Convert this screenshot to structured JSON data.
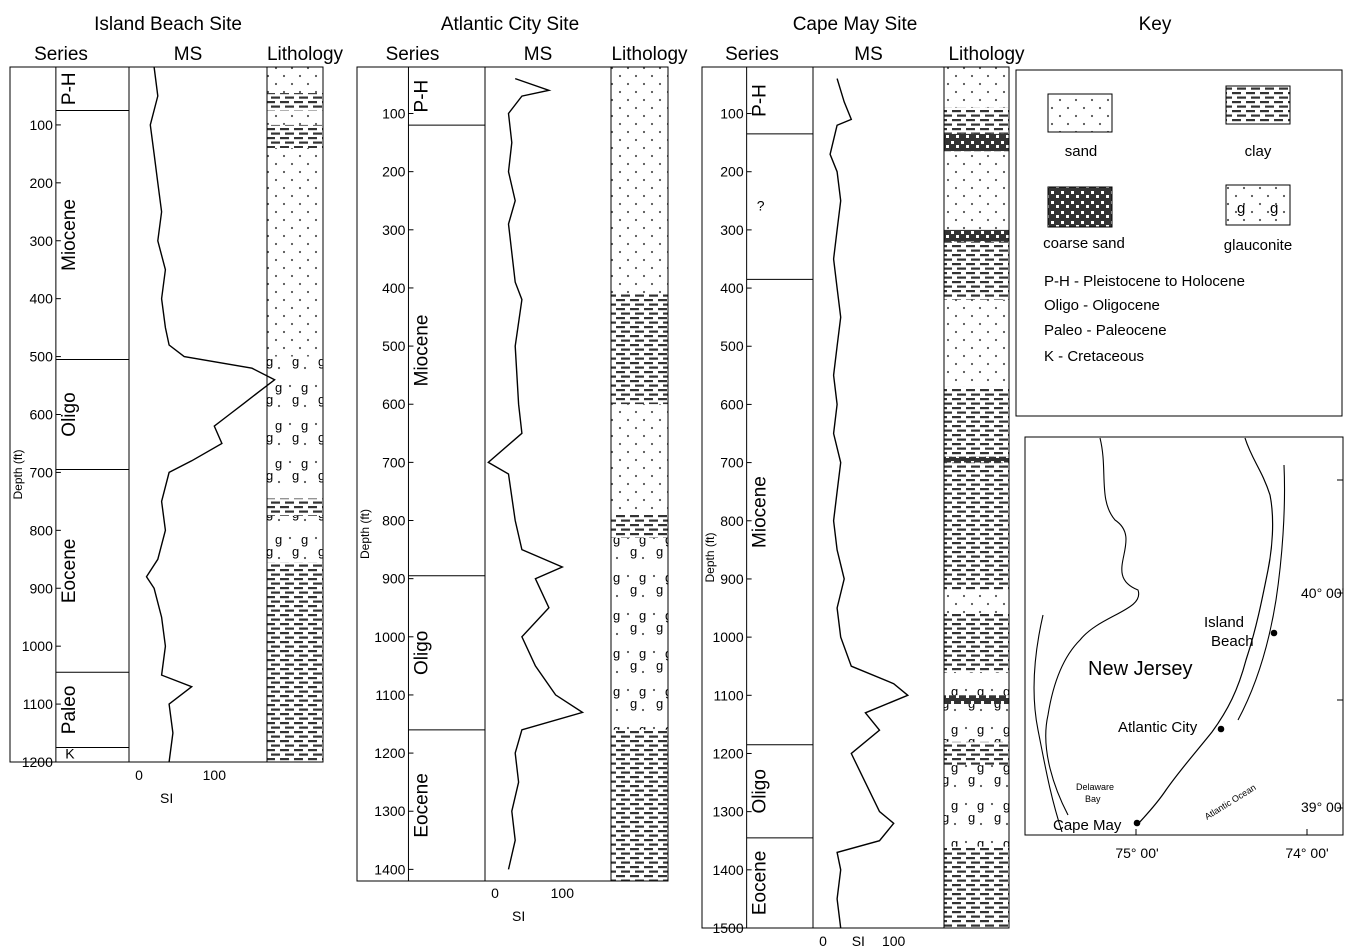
{
  "key": {
    "title": "Key",
    "sand": "sand",
    "clay": "clay",
    "coarse_sand": "coarse sand",
    "glauconite": "glauconite",
    "glauc_symbol": "g",
    "abbreviations": [
      "P-H - Pleistocene to Holocene",
      "Oligo - Oligocene",
      "Paleo - Paleocene",
      "K - Cretaceous"
    ]
  },
  "map": {
    "state": "New Jersey",
    "bay": [
      "Delaware",
      "Bay"
    ],
    "ocean": "Atlantic Ocean",
    "sites": [
      "Island",
      "Beach",
      "Atlantic City",
      "Cape May"
    ],
    "lat_labels": [
      "40° 00'",
      "39° 00'"
    ],
    "lon_labels": [
      "75° 00'",
      "74° 00'"
    ]
  },
  "columns_header": {
    "series": "Series",
    "ms": "MS",
    "lithology": "Lithology",
    "depth_label": "Depth (ft)",
    "si_label": "SI"
  },
  "chart_data": [
    {
      "type": "line",
      "title": "Island Beach Site",
      "ylabel": "Depth (ft)",
      "xlabel": "SI",
      "ylim": [
        1200,
        0
      ],
      "yticks": [
        100,
        200,
        300,
        400,
        500,
        600,
        700,
        800,
        900,
        1000,
        1100,
        1200
      ],
      "xticks": [
        0,
        100
      ],
      "series_units": [
        {
          "name": "P-H",
          "top": 0,
          "bottom": 75
        },
        {
          "name": "Miocene",
          "top": 75,
          "bottom": 505
        },
        {
          "name": "Oligo",
          "top": 505,
          "bottom": 695
        },
        {
          "name": "Eocene",
          "top": 695,
          "bottom": 1045
        },
        {
          "name": "Paleo",
          "top": 1045,
          "bottom": 1175
        },
        {
          "name": "K",
          "top": 1175,
          "bottom": 1200
        }
      ],
      "lithology": [
        {
          "type": "sand",
          "top": 0,
          "bottom": 45
        },
        {
          "type": "clay",
          "top": 45,
          "bottom": 75
        },
        {
          "type": "sand",
          "top": 75,
          "bottom": 100
        },
        {
          "type": "clay",
          "top": 100,
          "bottom": 140
        },
        {
          "type": "sand",
          "top": 140,
          "bottom": 500
        },
        {
          "type": "glauconite",
          "top": 500,
          "bottom": 745
        },
        {
          "type": "clay",
          "top": 745,
          "bottom": 775
        },
        {
          "type": "glauconite",
          "top": 775,
          "bottom": 855
        },
        {
          "type": "clay",
          "top": 855,
          "bottom": 1200
        }
      ],
      "ms_profile": [
        [
          0,
          20
        ],
        [
          50,
          25
        ],
        [
          100,
          15
        ],
        [
          150,
          20
        ],
        [
          200,
          25
        ],
        [
          250,
          30
        ],
        [
          300,
          25
        ],
        [
          350,
          35
        ],
        [
          400,
          30
        ],
        [
          450,
          35
        ],
        [
          480,
          40
        ],
        [
          500,
          60
        ],
        [
          520,
          150
        ],
        [
          540,
          180
        ],
        [
          560,
          160
        ],
        [
          580,
          140
        ],
        [
          600,
          120
        ],
        [
          620,
          100
        ],
        [
          650,
          110
        ],
        [
          680,
          70
        ],
        [
          700,
          40
        ],
        [
          750,
          30
        ],
        [
          800,
          35
        ],
        [
          850,
          25
        ],
        [
          880,
          10
        ],
        [
          900,
          20
        ],
        [
          950,
          30
        ],
        [
          1000,
          35
        ],
        [
          1050,
          30
        ],
        [
          1070,
          70
        ],
        [
          1100,
          40
        ],
        [
          1150,
          45
        ],
        [
          1200,
          40
        ]
      ]
    },
    {
      "type": "line",
      "title": "Atlantic City Site",
      "ylabel": "Depth (ft)",
      "xlabel": "SI",
      "ylim": [
        1420,
        20
      ],
      "yticks": [
        100,
        200,
        300,
        400,
        500,
        600,
        700,
        800,
        900,
        1000,
        1100,
        1200,
        1300,
        1400
      ],
      "xticks": [
        0,
        100
      ],
      "series_units": [
        {
          "name": "P-H",
          "top": 20,
          "bottom": 120
        },
        {
          "name": "Miocene",
          "top": 120,
          "bottom": 895
        },
        {
          "name": "Oligo",
          "top": 895,
          "bottom": 1160
        },
        {
          "name": "Eocene",
          "top": 1160,
          "bottom": 1420
        }
      ],
      "lithology": [
        {
          "type": "sand",
          "top": 20,
          "bottom": 410
        },
        {
          "type": "clay",
          "top": 410,
          "bottom": 600
        },
        {
          "type": "sand",
          "top": 600,
          "bottom": 790
        },
        {
          "type": "clay",
          "top": 790,
          "bottom": 830
        },
        {
          "type": "glauconite",
          "top": 830,
          "bottom": 1160
        },
        {
          "type": "clay",
          "top": 1160,
          "bottom": 1420
        }
      ],
      "ms_profile": [
        [
          40,
          30
        ],
        [
          60,
          80
        ],
        [
          70,
          40
        ],
        [
          100,
          20
        ],
        [
          150,
          25
        ],
        [
          200,
          20
        ],
        [
          250,
          30
        ],
        [
          290,
          20
        ],
        [
          390,
          30
        ],
        [
          420,
          40
        ],
        [
          500,
          30
        ],
        [
          600,
          35
        ],
        [
          650,
          40
        ],
        [
          700,
          -10
        ],
        [
          720,
          20
        ],
        [
          800,
          30
        ],
        [
          850,
          40
        ],
        [
          880,
          100
        ],
        [
          900,
          60
        ],
        [
          950,
          80
        ],
        [
          1000,
          40
        ],
        [
          1050,
          60
        ],
        [
          1100,
          90
        ],
        [
          1130,
          130
        ],
        [
          1160,
          40
        ],
        [
          1200,
          30
        ],
        [
          1250,
          35
        ],
        [
          1300,
          25
        ],
        [
          1350,
          30
        ],
        [
          1400,
          20
        ]
      ]
    },
    {
      "type": "line",
      "title": "Cape May Site",
      "ylabel": "Depth (ft)",
      "xlabel": "SI",
      "ylim": [
        1500,
        20
      ],
      "yticks": [
        100,
        200,
        300,
        400,
        500,
        600,
        700,
        800,
        900,
        1000,
        1100,
        1200,
        1300,
        1400,
        1500
      ],
      "xticks": [
        0,
        100
      ],
      "series_units": [
        {
          "name": "P-H",
          "top": 20,
          "bottom": 135
        },
        {
          "name": "?",
          "top": 135,
          "bottom": 385
        },
        {
          "name": "Miocene",
          "top": 385,
          "bottom": 1185
        },
        {
          "name": "Oligo",
          "top": 1185,
          "bottom": 1345
        },
        {
          "name": "Eocene",
          "top": 1345,
          "bottom": 1500
        }
      ],
      "lithology": [
        {
          "type": "sand",
          "top": 20,
          "bottom": 90
        },
        {
          "type": "clay",
          "top": 90,
          "bottom": 135
        },
        {
          "type": "coarse_sand",
          "top": 135,
          "bottom": 165
        },
        {
          "type": "sand",
          "top": 165,
          "bottom": 300
        },
        {
          "type": "coarse_sand",
          "top": 300,
          "bottom": 320
        },
        {
          "type": "clay",
          "top": 320,
          "bottom": 420
        },
        {
          "type": "sand",
          "top": 420,
          "bottom": 570
        },
        {
          "type": "clay",
          "top": 570,
          "bottom": 690
        },
        {
          "type": "coarse_sand",
          "top": 690,
          "bottom": 700
        },
        {
          "type": "clay",
          "top": 700,
          "bottom": 920
        },
        {
          "type": "sand",
          "top": 920,
          "bottom": 960
        },
        {
          "type": "clay",
          "top": 960,
          "bottom": 1060
        },
        {
          "type": "glauconite",
          "top": 1060,
          "bottom": 1100
        },
        {
          "type": "coarse_sand",
          "top": 1100,
          "bottom": 1115
        },
        {
          "type": "glauconite",
          "top": 1115,
          "bottom": 1180
        },
        {
          "type": "clay",
          "top": 1180,
          "bottom": 1220
        },
        {
          "type": "glauconite",
          "top": 1220,
          "bottom": 1360
        },
        {
          "type": "clay",
          "top": 1360,
          "bottom": 1500
        }
      ],
      "ms_profile": [
        [
          40,
          20
        ],
        [
          80,
          30
        ],
        [
          110,
          40
        ],
        [
          120,
          20
        ],
        [
          170,
          10
        ],
        [
          200,
          20
        ],
        [
          250,
          25
        ],
        [
          300,
          20
        ],
        [
          350,
          15
        ],
        [
          400,
          20
        ],
        [
          450,
          25
        ],
        [
          500,
          20
        ],
        [
          550,
          15
        ],
        [
          600,
          20
        ],
        [
          650,
          15
        ],
        [
          700,
          25
        ],
        [
          750,
          20
        ],
        [
          800,
          15
        ],
        [
          850,
          20
        ],
        [
          900,
          30
        ],
        [
          950,
          20
        ],
        [
          1000,
          25
        ],
        [
          1050,
          40
        ],
        [
          1080,
          100
        ],
        [
          1100,
          120
        ],
        [
          1130,
          60
        ],
        [
          1160,
          80
        ],
        [
          1200,
          40
        ],
        [
          1250,
          60
        ],
        [
          1300,
          80
        ],
        [
          1320,
          100
        ],
        [
          1350,
          80
        ],
        [
          1370,
          20
        ],
        [
          1400,
          25
        ],
        [
          1450,
          20
        ],
        [
          1500,
          25
        ]
      ]
    }
  ]
}
